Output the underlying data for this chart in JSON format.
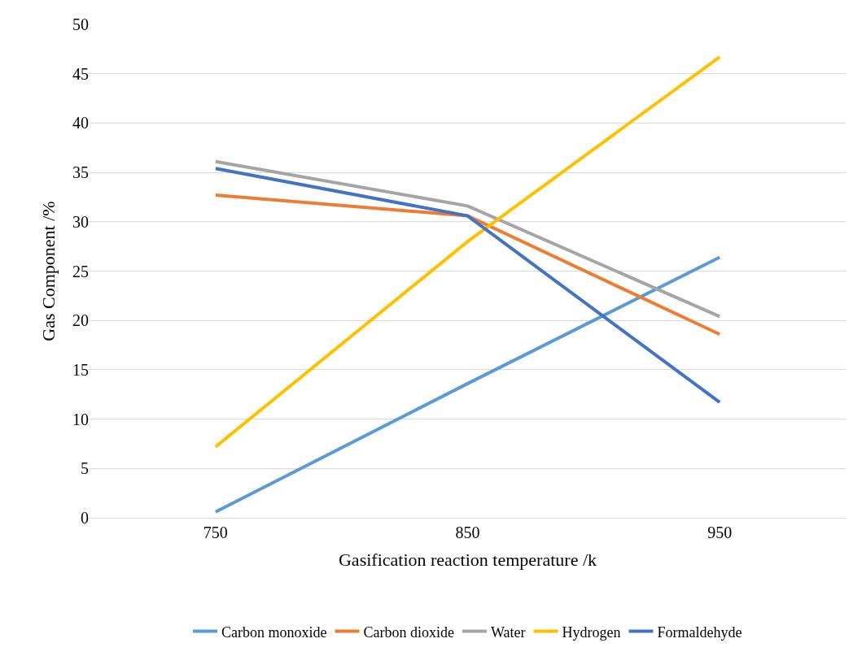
{
  "chart_data": {
    "type": "line",
    "xlabel": "Gasification reaction temperature /k",
    "ylabel": "Gas Component /%",
    "categories": [
      "750",
      "850",
      "950"
    ],
    "series": [
      {
        "name": "Carbon monoxide",
        "color": "#5b9bd5",
        "values": [
          0.6,
          13.6,
          26.4
        ]
      },
      {
        "name": "Carbon dioxide",
        "color": "#ed7d31",
        "values": [
          32.7,
          30.6,
          18.6
        ]
      },
      {
        "name": "Water",
        "color": "#a5a5a5",
        "values": [
          36.1,
          31.6,
          20.4
        ]
      },
      {
        "name": "Hydrogen",
        "color": "#ffc000",
        "values": [
          7.2,
          28,
          46.7
        ]
      },
      {
        "name": "Formaldehyde",
        "color": "#4472c4",
        "values": [
          35.4,
          30.6,
          11.7
        ]
      }
    ],
    "ylim": [
      0,
      50
    ],
    "yticks": [
      0,
      5,
      10,
      15,
      20,
      25,
      30,
      35,
      40,
      45,
      50
    ],
    "grid": "y",
    "legend": "bottom",
    "marker": "none",
    "line_style": "solid"
  }
}
